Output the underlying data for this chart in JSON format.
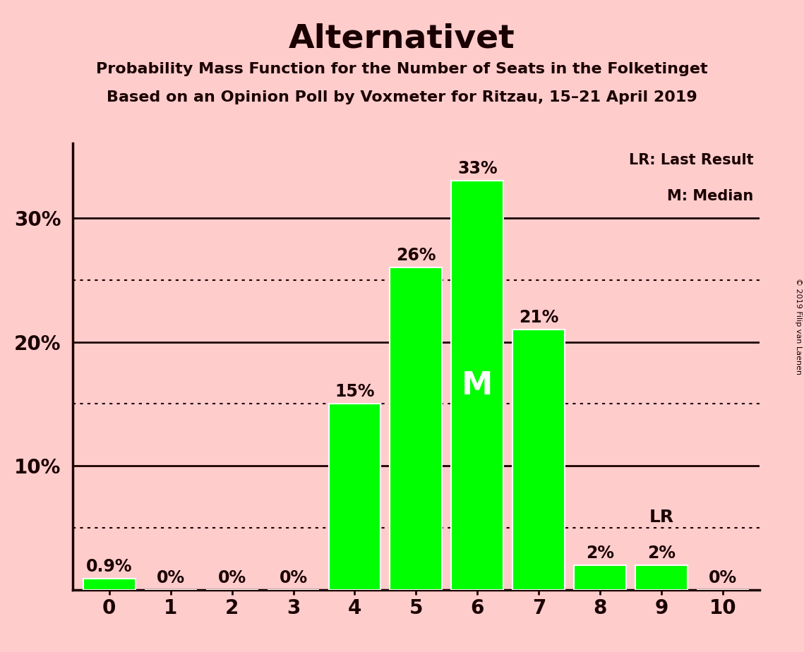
{
  "title": "Alternativet",
  "subtitle1": "Probability Mass Function for the Number of Seats in the Folketinget",
  "subtitle2": "Based on an Opinion Poll by Voxmeter for Ritzau, 15–21 April 2019",
  "copyright": "© 2019 Filip van Laenen",
  "seats": [
    0,
    1,
    2,
    3,
    4,
    5,
    6,
    7,
    8,
    9,
    10
  ],
  "probabilities": [
    0.9,
    0,
    0,
    0,
    15,
    26,
    33,
    21,
    2,
    2,
    0
  ],
  "bar_color": "#00ff00",
  "background_color": "#ffcccc",
  "text_color": "#1a0000",
  "median_seat": 6,
  "last_result_seat": 9,
  "ylim": [
    0,
    36
  ],
  "dotted_lines": [
    5,
    15,
    25
  ],
  "solid_lines": [
    10,
    20,
    30
  ],
  "legend_text1": "LR: Last Result",
  "legend_text2": "M: Median",
  "bar_width": 0.85,
  "label_fontsize": 17,
  "tick_fontsize": 20,
  "subtitle_fontsize": 16,
  "title_fontsize": 34
}
